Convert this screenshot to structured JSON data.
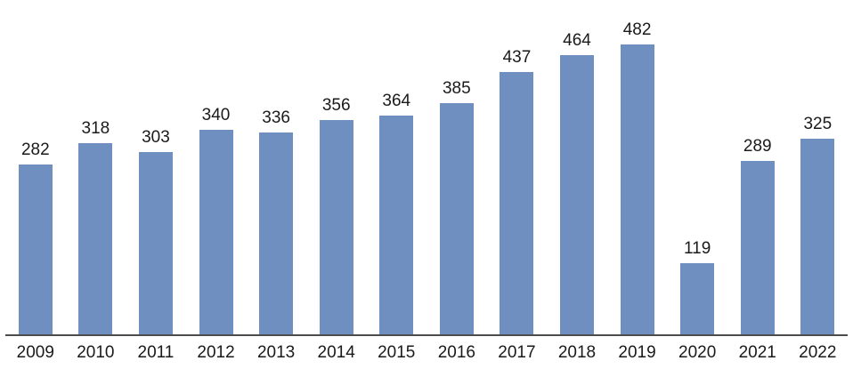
{
  "chart_data": {
    "type": "bar",
    "categories": [
      "2009",
      "2010",
      "2011",
      "2012",
      "2013",
      "2014",
      "2015",
      "2016",
      "2017",
      "2018",
      "2019",
      "2020",
      "2021",
      "2022"
    ],
    "values": [
      282,
      318,
      303,
      340,
      336,
      356,
      364,
      385,
      437,
      464,
      482,
      119,
      289,
      325
    ],
    "title": "",
    "xlabel": "",
    "ylabel": "",
    "ylim": [
      0,
      500
    ],
    "grid": false,
    "legend": false,
    "data_labels": true,
    "bar_color": "#6e8fbf",
    "axis_color": "#4d4d4d",
    "label_color": "#1a1a1a"
  }
}
